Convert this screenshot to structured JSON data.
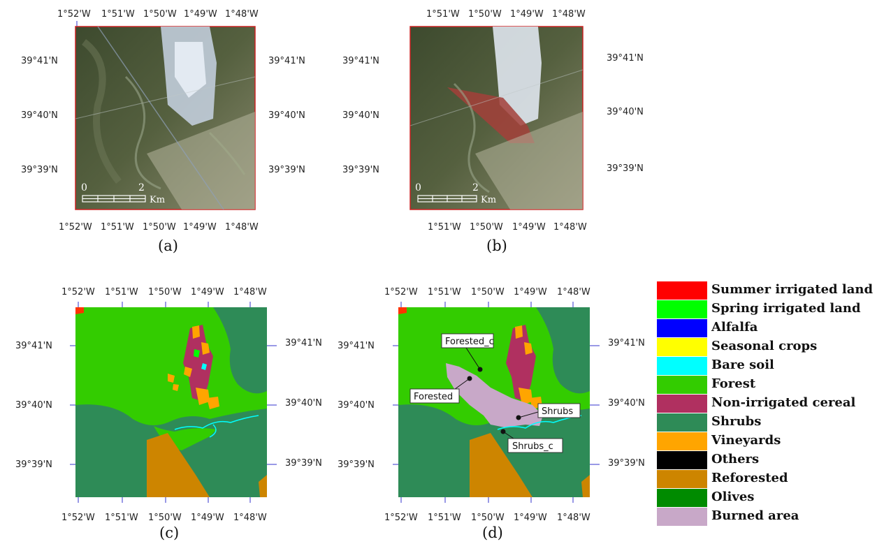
{
  "panels": [
    {
      "id": "a",
      "caption": "(a)",
      "top_ticks": [
        "1°52'W",
        "1°51'W",
        "1°50'W",
        "1°49'W",
        "1°48'W"
      ],
      "bottom_ticks": [
        "1°52'W",
        "1°51'W",
        "1°50'W",
        "1°49'W",
        "1°48'W"
      ],
      "left_ticks": [
        "39°41'N",
        "39°40'N",
        "39°39'N"
      ],
      "right_ticks": [
        "39°41'N",
        "39°40'N",
        "39°39'N"
      ],
      "scale_zero": "0",
      "scale_two": "2",
      "scale_unit": "Km"
    },
    {
      "id": "b",
      "caption": "(b)",
      "top_ticks": [
        "1°51'W",
        "1°50'W",
        "1°49'W",
        "1°48'W"
      ],
      "bottom_ticks": [
        "1°51'W",
        "1°50'W",
        "1°49'W",
        "1°48'W"
      ],
      "left_ticks": [
        "39°41'N",
        "39°40'N",
        "39°39'N"
      ],
      "right_ticks": [
        "39°41'N",
        "39°40'N",
        "39°39'N"
      ],
      "scale_zero": "0",
      "scale_two": "2",
      "scale_unit": "Km"
    },
    {
      "id": "c",
      "caption": "(c)",
      "top_ticks": [
        "1°52'W",
        "1°51'W",
        "1°50'W",
        "1°49'W",
        "1°48'W"
      ],
      "bottom_ticks": [
        "1°52'W",
        "1°51'W",
        "1°50'W",
        "1°49'W",
        "1°48'W"
      ],
      "left_ticks": [
        "39°41'N",
        "39°40'N",
        "39°39'N"
      ],
      "right_ticks": [
        "39°41'N",
        "39°40'N",
        "39°39'N"
      ]
    },
    {
      "id": "d",
      "caption": "(d)",
      "top_ticks": [
        "1°52'W",
        "1°51'W",
        "1°50'W",
        "1°49'W",
        "1°48'W"
      ],
      "bottom_ticks": [
        "1°52'W",
        "1°51'W",
        "1°50'W",
        "1°49'W",
        "1°48'W"
      ],
      "left_ticks": [
        "39°41'N",
        "39°40'N",
        "39°39'N"
      ],
      "right_ticks": [
        "39°41'N",
        "39°40'N",
        "39°39'N"
      ]
    }
  ],
  "map_labels": {
    "forested_c": "Forested_c",
    "forested": "Forested",
    "shrubs": "Shrubs",
    "shrubs_c": "Shrubs_c"
  },
  "legend": [
    {
      "label": "Summer irrigated land",
      "color": "#ff0000"
    },
    {
      "label": "Spring irrigated land",
      "color": "#00ff00"
    },
    {
      "label": "Alfalfa",
      "color": "#0000ff"
    },
    {
      "label": "Seasonal crops",
      "color": "#ffff00"
    },
    {
      "label": "Bare soil",
      "color": "#00ffff"
    },
    {
      "label": "Forest",
      "color": "#33cc00"
    },
    {
      "label": "Non-irrigated cereal",
      "color": "#b03060"
    },
    {
      "label": "Shrubs",
      "color": "#2e8b57"
    },
    {
      "label": "Vineyards",
      "color": "#ffa500"
    },
    {
      "label": "Others",
      "color": "#000000"
    },
    {
      "label": "Reforested",
      "color": "#cd8500"
    },
    {
      "label": "Olives",
      "color": "#008b00"
    },
    {
      "label": "Burned area",
      "color": "#c8a8c8"
    }
  ],
  "colors": {
    "forest": "#33cc00",
    "shrubs": "#2e8b57",
    "reforested": "#cd8500",
    "burned": "#c8a8c8",
    "vineyards": "#ffa500",
    "cereal": "#b03060",
    "bare_soil": "#00ffff",
    "panel_border": "#cc2222",
    "tick_color": "#3333cc"
  }
}
